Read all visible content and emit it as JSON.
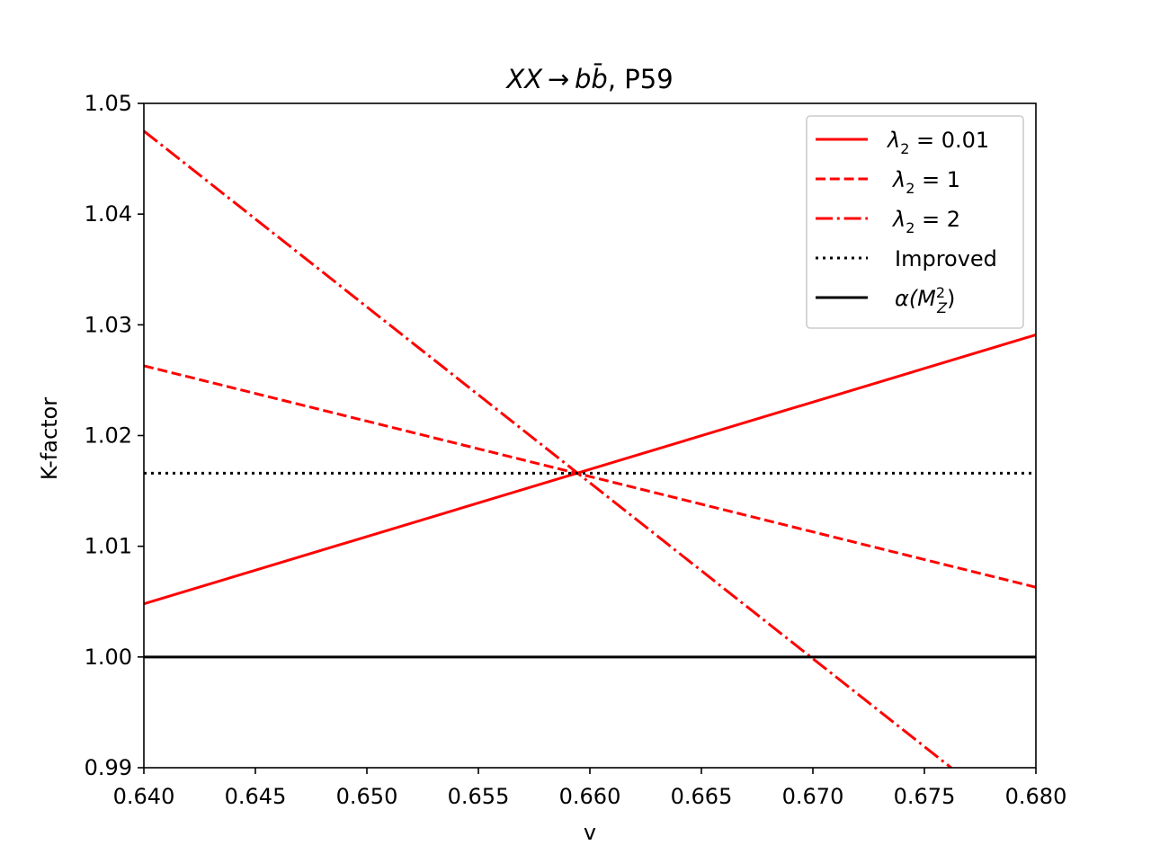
{
  "chart_data": {
    "type": "line",
    "title_main": "XX → b",
    "title_bar": "b̄",
    "title_suffix": ", P59",
    "xlabel": "v",
    "ylabel": "K-factor",
    "xlim": [
      0.64,
      0.68
    ],
    "ylim": [
      0.99,
      1.05
    ],
    "x_ticks": [
      {
        "value": 0.64,
        "label": "0.640"
      },
      {
        "value": 0.645,
        "label": "0.645"
      },
      {
        "value": 0.65,
        "label": "0.650"
      },
      {
        "value": 0.655,
        "label": "0.655"
      },
      {
        "value": 0.66,
        "label": "0.660"
      },
      {
        "value": 0.665,
        "label": "0.665"
      },
      {
        "value": 0.67,
        "label": "0.670"
      },
      {
        "value": 0.675,
        "label": "0.675"
      },
      {
        "value": 0.68,
        "label": "0.680"
      }
    ],
    "y_ticks": [
      {
        "value": 0.99,
        "label": "0.99"
      },
      {
        "value": 1.0,
        "label": "1.00"
      },
      {
        "value": 1.01,
        "label": "1.01"
      },
      {
        "value": 1.02,
        "label": "1.02"
      },
      {
        "value": 1.03,
        "label": "1.03"
      },
      {
        "value": 1.04,
        "label": "1.04"
      },
      {
        "value": 1.05,
        "label": "1.05"
      }
    ],
    "grid": false,
    "legend_position": "top-right",
    "series": [
      {
        "legend_main": "λ",
        "legend_sub": "2",
        "legend_value": " = 0.01",
        "color": "#ff0000",
        "style": "solid",
        "x": [
          0.64,
          0.68
        ],
        "y": [
          1.0048,
          1.0291
        ]
      },
      {
        "legend_main": "λ",
        "legend_sub": "2",
        "legend_value": " = 1",
        "color": "#ff0000",
        "style": "dashed",
        "x": [
          0.64,
          0.68
        ],
        "y": [
          1.0263,
          1.0063
        ]
      },
      {
        "legend_main": "λ",
        "legend_sub": "2",
        "legend_value": " = 2",
        "color": "#ff0000",
        "style": "dashdot",
        "x": [
          0.64,
          0.6762
        ],
        "y": [
          1.0475,
          0.99
        ]
      },
      {
        "legend_main": "Improved",
        "legend_sub": "",
        "legend_value": "",
        "color": "#000000",
        "style": "dotted",
        "x": [
          0.64,
          0.68
        ],
        "y": [
          1.0166,
          1.0166
        ]
      },
      {
        "legend_main": "α(M",
        "legend_sub": "Z",
        "legend_sup": "2",
        "legend_value": ")",
        "color": "#000000",
        "style": "solid",
        "x": [
          0.64,
          0.68
        ],
        "y": [
          1.0,
          1.0
        ]
      }
    ]
  }
}
